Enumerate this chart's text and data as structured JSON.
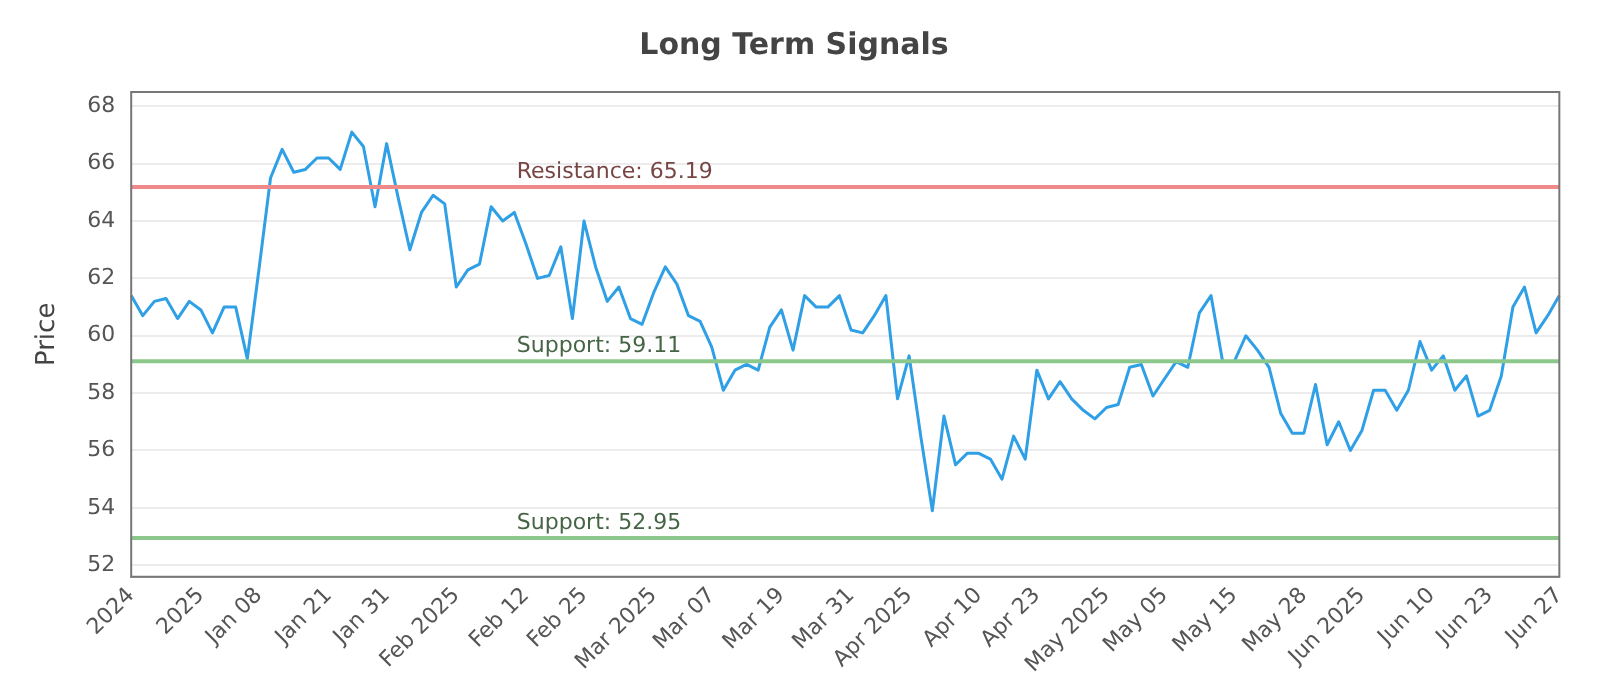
{
  "chart_data": {
    "type": "line",
    "title": "Long Term Signals",
    "ylabel": "Price",
    "categories": [
      "2024",
      null,
      null,
      null,
      null,
      null,
      "2025",
      null,
      null,
      null,
      null,
      "Jan 08",
      null,
      null,
      null,
      null,
      null,
      "Jan 21",
      null,
      null,
      null,
      null,
      "Jan 31",
      null,
      null,
      null,
      null,
      null,
      "Feb 2025",
      null,
      null,
      null,
      null,
      null,
      "Feb 12",
      null,
      null,
      null,
      null,
      "Feb 25",
      null,
      null,
      null,
      null,
      null,
      "Mar 2025",
      null,
      null,
      null,
      null,
      "Mar 07",
      null,
      null,
      null,
      null,
      null,
      "Mar 19",
      null,
      null,
      null,
      null,
      null,
      "Mar 31",
      null,
      null,
      null,
      null,
      "Apr 2025",
      null,
      null,
      null,
      null,
      null,
      "Apr 10",
      null,
      null,
      null,
      null,
      "Apr 23",
      null,
      null,
      null,
      null,
      null,
      "May 2025",
      null,
      null,
      null,
      null,
      "May 05",
      null,
      null,
      null,
      null,
      null,
      "May 15",
      null,
      null,
      null,
      null,
      null,
      "May 28",
      null,
      null,
      null,
      null,
      "Jun 2025",
      null,
      null,
      null,
      null,
      null,
      "Jun 10",
      null,
      null,
      null,
      null,
      "Jun 23",
      null,
      null,
      null,
      null,
      null,
      "Jun 27"
    ],
    "series": [
      {
        "color": "#2f9fe6",
        "values": [
          61.4,
          60.7,
          61.2,
          61.3,
          60.6,
          61.2,
          60.9,
          60.1,
          61.0,
          61.0,
          59.2,
          62.3,
          65.5,
          66.5,
          65.7,
          65.8,
          66.2,
          66.2,
          65.8,
          67.1,
          66.6,
          64.5,
          66.7,
          64.8,
          63.0,
          64.3,
          64.9,
          64.6,
          61.7,
          62.3,
          62.5,
          64.5,
          64.0,
          64.3,
          63.2,
          62.0,
          62.1,
          63.1,
          60.6,
          64.0,
          62.4,
          61.2,
          61.7,
          60.6,
          60.4,
          61.5,
          62.4,
          61.8,
          60.7,
          60.5,
          59.6,
          58.1,
          58.8,
          59.0,
          58.8,
          60.3,
          60.9,
          59.5,
          61.4,
          61.0,
          61.0,
          61.4,
          60.2,
          60.1,
          60.7,
          61.4,
          57.8,
          59.3,
          56.5,
          53.9,
          57.2,
          55.5,
          55.9,
          55.9,
          55.7,
          55.0,
          56.5,
          55.7,
          58.8,
          57.8,
          58.4,
          57.8,
          57.4,
          57.1,
          57.5,
          57.6,
          58.9,
          59.0,
          57.9,
          58.5,
          59.1,
          58.9,
          60.8,
          61.4,
          59.1,
          59.1,
          60.0,
          59.5,
          58.9,
          57.3,
          56.6,
          56.6,
          58.3,
          56.2,
          57.0,
          56.0,
          56.7,
          58.1,
          58.1,
          57.4,
          58.1,
          59.8,
          58.8,
          59.3,
          58.1,
          58.6,
          57.2,
          57.4,
          58.6,
          61.0,
          61.7,
          60.1,
          60.7,
          61.4
        ]
      }
    ],
    "ylim": [
      51.6,
      68.5
    ],
    "yticks": [
      52,
      54,
      56,
      58,
      60,
      62,
      64,
      66,
      68
    ],
    "grid": "y",
    "legend": false,
    "marker": "none",
    "line_style": "solid",
    "ref_lines": [
      {
        "axis": "y",
        "value": 65.19,
        "label": "Resistance: 65.19",
        "color": "#f08a8a"
      },
      {
        "axis": "y",
        "value": 59.11,
        "label": "Support: 59.11",
        "color": "#8cc88c"
      },
      {
        "axis": "y",
        "value": 52.95,
        "label": "Support: 52.95",
        "color": "#8cc88c"
      }
    ]
  }
}
